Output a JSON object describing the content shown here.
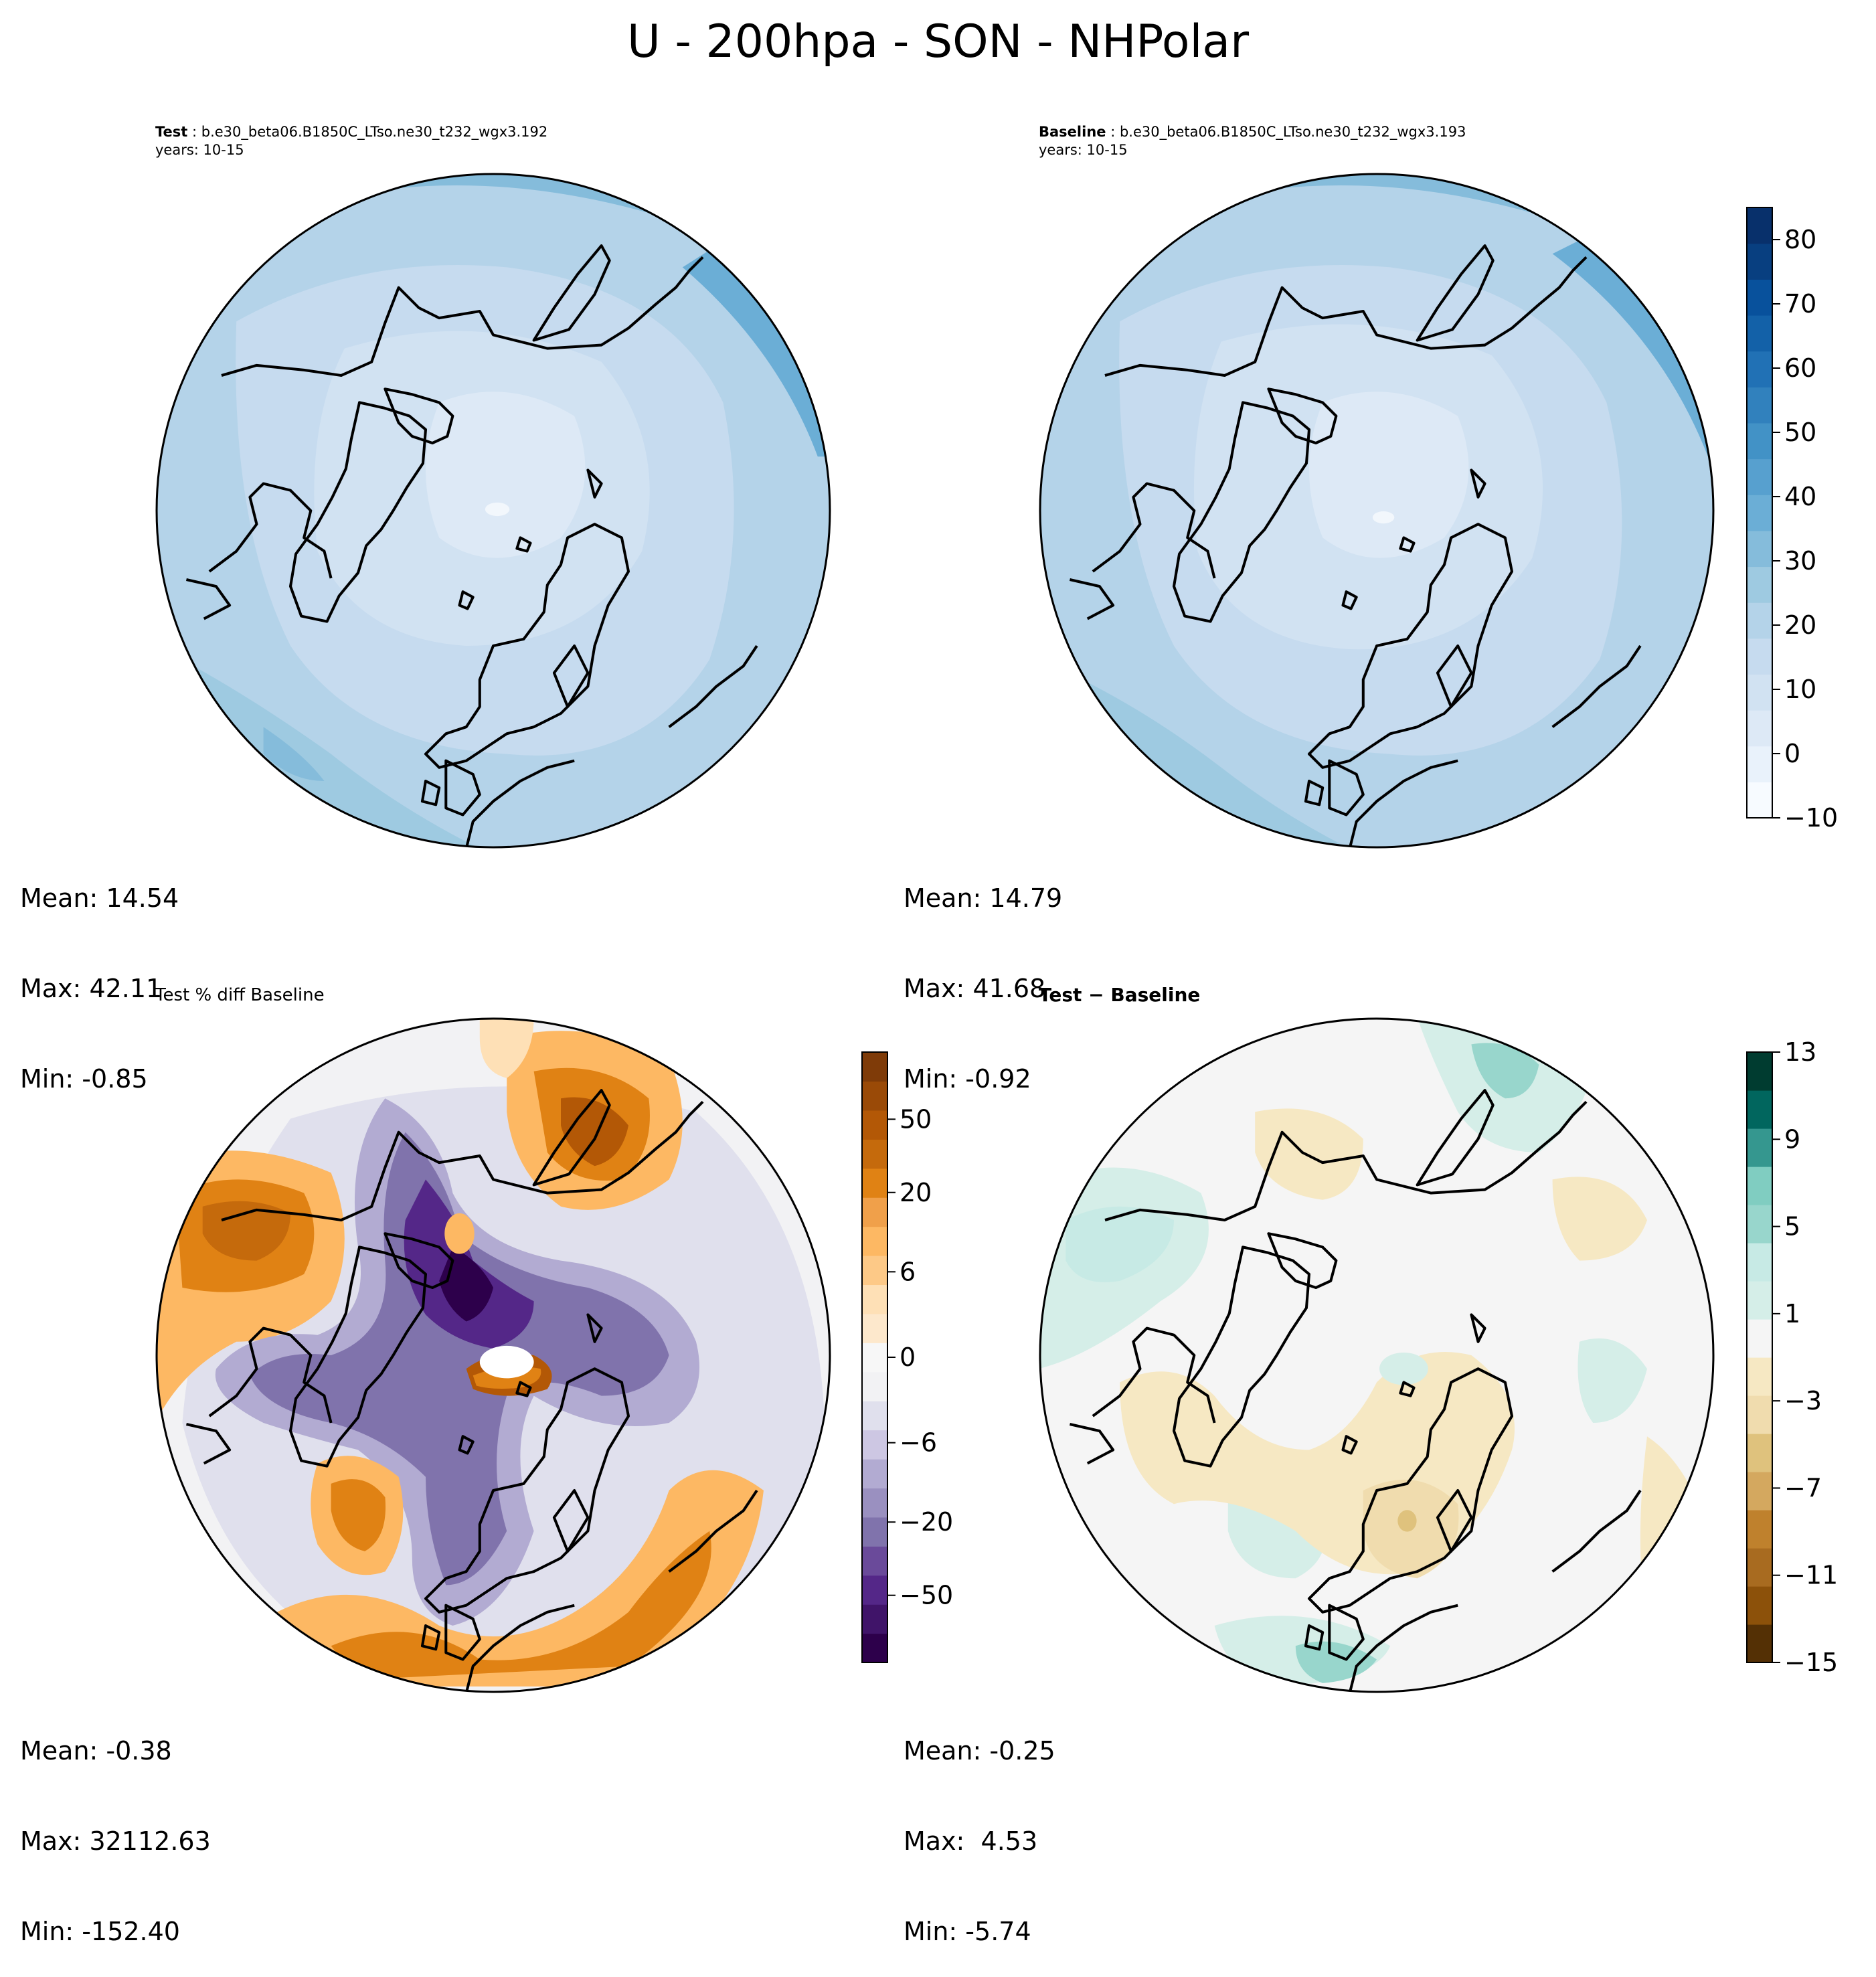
{
  "figure": {
    "title": "U - 200hpa - SON - NHPolar"
  },
  "panels": {
    "test": {
      "label": "Test",
      "case": " : b.e30_beta06.B1850C_LTso.ne30_t232_wgx3.192",
      "years": "years: 10-15",
      "stats": {
        "mean": "Mean: 14.54",
        "max": "Max: 42.11",
        "min": "Min: -0.85"
      }
    },
    "baseline": {
      "label": "Baseline",
      "case": " : b.e30_beta06.B1850C_LTso.ne30_t232_wgx3.193",
      "years": "years: 10-15",
      "stats": {
        "mean": "Mean: 14.79",
        "max": "Max: 41.68",
        "min": "Min: -0.92"
      }
    },
    "pct_diff": {
      "label": "Test % diff Baseline",
      "stats": {
        "mean": "Mean: -0.38",
        "max": "Max: 32112.63",
        "min": "Min: -152.40"
      }
    },
    "diff": {
      "label": "Test − Baseline",
      "stats": {
        "mean": "Mean: -0.25",
        "max": "Max:  4.53",
        "min": "Min: -5.74"
      }
    }
  },
  "colorbars": {
    "main": {
      "ticks": [
        "80",
        "70",
        "60",
        "50",
        "40",
        "30",
        "20",
        "10",
        "0",
        "−10"
      ],
      "tick_values": [
        80,
        70,
        60,
        50,
        40,
        30,
        20,
        10,
        0,
        -10
      ],
      "range": [
        -10,
        85
      ],
      "colors": [
        "#f7fbff",
        "#e9f2fb",
        "#dde9f6",
        "#d1e2f2",
        "#c6dbef",
        "#b4d3e9",
        "#9ecae1",
        "#85bcdb",
        "#6baed6",
        "#57a0cf",
        "#4292c6",
        "#3181bd",
        "#2171b5",
        "#1361a8",
        "#08519c",
        "#083f80",
        "#08306b"
      ]
    },
    "pct_diff": {
      "ticks": [
        "50",
        "20",
        "6",
        "0",
        "−6",
        "−20",
        "−50"
      ],
      "levels": 20,
      "colors": [
        "#2d004b",
        "#401469",
        "#542788",
        "#6a4a9a",
        "#8073ac",
        "#9a90c0",
        "#b2abd2",
        "#cdc7e3",
        "#e0e0ed",
        "#f2f2f4",
        "#f7f7f7",
        "#fde8cc",
        "#fee0b6",
        "#fdc987",
        "#fdb863",
        "#f0a04a",
        "#e08214",
        "#c56a0c",
        "#b35806",
        "#9a4a07",
        "#7f3b08"
      ]
    },
    "diff": {
      "ticks": [
        "13",
        "9",
        "5",
        "1",
        "−3",
        "−7",
        "−11",
        "−15"
      ],
      "tick_values": [
        13,
        9,
        5,
        1,
        -3,
        -7,
        -11,
        -15
      ],
      "range": [
        -15,
        13
      ],
      "colors": [
        "#543005",
        "#8c510a",
        "#a86b20",
        "#bf812d",
        "#d4a85f",
        "#dfc27d",
        "#f0dcae",
        "#f6e8c3",
        "#f5f5f5",
        "#d5eee8",
        "#c7eae5",
        "#98d6cc",
        "#80cdc1",
        "#35978f",
        "#01665e",
        "#003c30"
      ]
    }
  }
}
